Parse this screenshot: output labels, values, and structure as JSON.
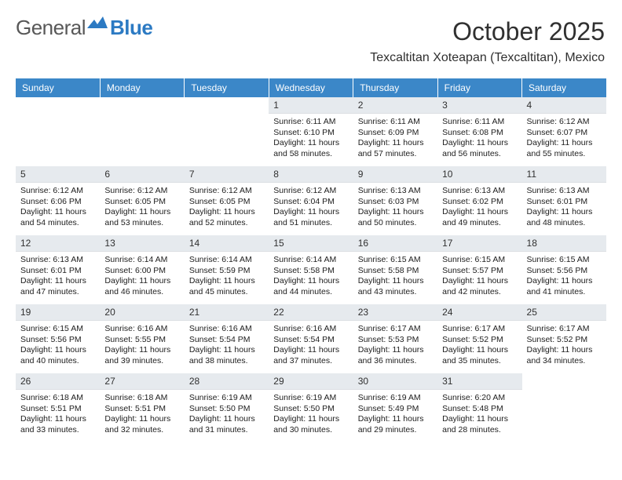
{
  "logo": {
    "general": "General",
    "blue": "Blue"
  },
  "header": {
    "month_title": "October 2025",
    "location": "Texcaltitan Xoteapan (Texcaltitan), Mexico"
  },
  "colors": {
    "header_bg": "#3b87c8",
    "header_text": "#ffffff",
    "daynum_bg": "#e6eaee",
    "page_bg": "#ffffff",
    "text": "#202020"
  },
  "calendar": {
    "day_headers": [
      "Sunday",
      "Monday",
      "Tuesday",
      "Wednesday",
      "Thursday",
      "Friday",
      "Saturday"
    ],
    "weeks": [
      [
        null,
        null,
        null,
        {
          "day": "1",
          "sunrise": "Sunrise: 6:11 AM",
          "sunset": "Sunset: 6:10 PM",
          "daylight": "Daylight: 11 hours and 58 minutes."
        },
        {
          "day": "2",
          "sunrise": "Sunrise: 6:11 AM",
          "sunset": "Sunset: 6:09 PM",
          "daylight": "Daylight: 11 hours and 57 minutes."
        },
        {
          "day": "3",
          "sunrise": "Sunrise: 6:11 AM",
          "sunset": "Sunset: 6:08 PM",
          "daylight": "Daylight: 11 hours and 56 minutes."
        },
        {
          "day": "4",
          "sunrise": "Sunrise: 6:12 AM",
          "sunset": "Sunset: 6:07 PM",
          "daylight": "Daylight: 11 hours and 55 minutes."
        }
      ],
      [
        {
          "day": "5",
          "sunrise": "Sunrise: 6:12 AM",
          "sunset": "Sunset: 6:06 PM",
          "daylight": "Daylight: 11 hours and 54 minutes."
        },
        {
          "day": "6",
          "sunrise": "Sunrise: 6:12 AM",
          "sunset": "Sunset: 6:05 PM",
          "daylight": "Daylight: 11 hours and 53 minutes."
        },
        {
          "day": "7",
          "sunrise": "Sunrise: 6:12 AM",
          "sunset": "Sunset: 6:05 PM",
          "daylight": "Daylight: 11 hours and 52 minutes."
        },
        {
          "day": "8",
          "sunrise": "Sunrise: 6:12 AM",
          "sunset": "Sunset: 6:04 PM",
          "daylight": "Daylight: 11 hours and 51 minutes."
        },
        {
          "day": "9",
          "sunrise": "Sunrise: 6:13 AM",
          "sunset": "Sunset: 6:03 PM",
          "daylight": "Daylight: 11 hours and 50 minutes."
        },
        {
          "day": "10",
          "sunrise": "Sunrise: 6:13 AM",
          "sunset": "Sunset: 6:02 PM",
          "daylight": "Daylight: 11 hours and 49 minutes."
        },
        {
          "day": "11",
          "sunrise": "Sunrise: 6:13 AM",
          "sunset": "Sunset: 6:01 PM",
          "daylight": "Daylight: 11 hours and 48 minutes."
        }
      ],
      [
        {
          "day": "12",
          "sunrise": "Sunrise: 6:13 AM",
          "sunset": "Sunset: 6:01 PM",
          "daylight": "Daylight: 11 hours and 47 minutes."
        },
        {
          "day": "13",
          "sunrise": "Sunrise: 6:14 AM",
          "sunset": "Sunset: 6:00 PM",
          "daylight": "Daylight: 11 hours and 46 minutes."
        },
        {
          "day": "14",
          "sunrise": "Sunrise: 6:14 AM",
          "sunset": "Sunset: 5:59 PM",
          "daylight": "Daylight: 11 hours and 45 minutes."
        },
        {
          "day": "15",
          "sunrise": "Sunrise: 6:14 AM",
          "sunset": "Sunset: 5:58 PM",
          "daylight": "Daylight: 11 hours and 44 minutes."
        },
        {
          "day": "16",
          "sunrise": "Sunrise: 6:15 AM",
          "sunset": "Sunset: 5:58 PM",
          "daylight": "Daylight: 11 hours and 43 minutes."
        },
        {
          "day": "17",
          "sunrise": "Sunrise: 6:15 AM",
          "sunset": "Sunset: 5:57 PM",
          "daylight": "Daylight: 11 hours and 42 minutes."
        },
        {
          "day": "18",
          "sunrise": "Sunrise: 6:15 AM",
          "sunset": "Sunset: 5:56 PM",
          "daylight": "Daylight: 11 hours and 41 minutes."
        }
      ],
      [
        {
          "day": "19",
          "sunrise": "Sunrise: 6:15 AM",
          "sunset": "Sunset: 5:56 PM",
          "daylight": "Daylight: 11 hours and 40 minutes."
        },
        {
          "day": "20",
          "sunrise": "Sunrise: 6:16 AM",
          "sunset": "Sunset: 5:55 PM",
          "daylight": "Daylight: 11 hours and 39 minutes."
        },
        {
          "day": "21",
          "sunrise": "Sunrise: 6:16 AM",
          "sunset": "Sunset: 5:54 PM",
          "daylight": "Daylight: 11 hours and 38 minutes."
        },
        {
          "day": "22",
          "sunrise": "Sunrise: 6:16 AM",
          "sunset": "Sunset: 5:54 PM",
          "daylight": "Daylight: 11 hours and 37 minutes."
        },
        {
          "day": "23",
          "sunrise": "Sunrise: 6:17 AM",
          "sunset": "Sunset: 5:53 PM",
          "daylight": "Daylight: 11 hours and 36 minutes."
        },
        {
          "day": "24",
          "sunrise": "Sunrise: 6:17 AM",
          "sunset": "Sunset: 5:52 PM",
          "daylight": "Daylight: 11 hours and 35 minutes."
        },
        {
          "day": "25",
          "sunrise": "Sunrise: 6:17 AM",
          "sunset": "Sunset: 5:52 PM",
          "daylight": "Daylight: 11 hours and 34 minutes."
        }
      ],
      [
        {
          "day": "26",
          "sunrise": "Sunrise: 6:18 AM",
          "sunset": "Sunset: 5:51 PM",
          "daylight": "Daylight: 11 hours and 33 minutes."
        },
        {
          "day": "27",
          "sunrise": "Sunrise: 6:18 AM",
          "sunset": "Sunset: 5:51 PM",
          "daylight": "Daylight: 11 hours and 32 minutes."
        },
        {
          "day": "28",
          "sunrise": "Sunrise: 6:19 AM",
          "sunset": "Sunset: 5:50 PM",
          "daylight": "Daylight: 11 hours and 31 minutes."
        },
        {
          "day": "29",
          "sunrise": "Sunrise: 6:19 AM",
          "sunset": "Sunset: 5:50 PM",
          "daylight": "Daylight: 11 hours and 30 minutes."
        },
        {
          "day": "30",
          "sunrise": "Sunrise: 6:19 AM",
          "sunset": "Sunset: 5:49 PM",
          "daylight": "Daylight: 11 hours and 29 minutes."
        },
        {
          "day": "31",
          "sunrise": "Sunrise: 6:20 AM",
          "sunset": "Sunset: 5:48 PM",
          "daylight": "Daylight: 11 hours and 28 minutes."
        },
        null
      ]
    ]
  }
}
